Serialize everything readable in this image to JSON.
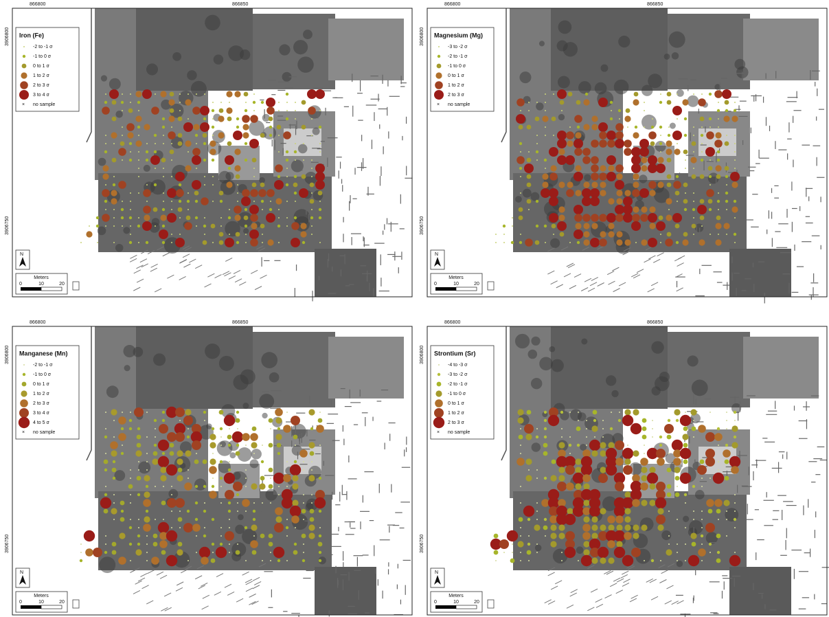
{
  "panels": [
    {
      "title": "Iron (Fe)",
      "legend": [
        {
          "label": "-2 to -1 σ",
          "color": "#c9d27a"
        },
        {
          "label": "-1 to 0 σ",
          "color": "#a7b52a"
        },
        {
          "label": "0 to 1 σ",
          "color": "#a39a2c"
        },
        {
          "label": "1 to 2 σ",
          "color": "#b0702c"
        },
        {
          "label": "2 to 3 σ",
          "color": "#a04222"
        },
        {
          "label": "3 to 4 σ",
          "color": "#9a1c18"
        }
      ],
      "no_sample": "no sample"
    },
    {
      "title": "Magnesium (Mg)",
      "legend": [
        {
          "label": "-3 to -2 σ",
          "color": "#c9d27a"
        },
        {
          "label": "-2 to -1 σ",
          "color": "#a7b52a"
        },
        {
          "label": "-1 to 0 σ",
          "color": "#a39a2c"
        },
        {
          "label": "0 to 1 σ",
          "color": "#b0702c"
        },
        {
          "label": "1 to 2 σ",
          "color": "#a04222"
        },
        {
          "label": "2 to 3 σ",
          "color": "#9a1c18"
        }
      ],
      "no_sample": "no sample"
    },
    {
      "title": "Manganese (Mn)",
      "legend": [
        {
          "label": "-2 to -1 σ",
          "color": "#d6dca0"
        },
        {
          "label": "-1 to 0 σ",
          "color": "#a7b52a"
        },
        {
          "label": "0 to 1 σ",
          "color": "#a3a82c"
        },
        {
          "label": "1 to 2 σ",
          "color": "#a89a2c"
        },
        {
          "label": "2 to 3 σ",
          "color": "#b0702c"
        },
        {
          "label": "3 to 4 σ",
          "color": "#a04222"
        },
        {
          "label": "4 to 5 σ",
          "color": "#9a1c18"
        }
      ],
      "no_sample": "no sample"
    },
    {
      "title": "Strontium (Sr)",
      "legend": [
        {
          "label": "-4 to -3 σ",
          "color": "#d6dca0"
        },
        {
          "label": "-3 to -2 σ",
          "color": "#b5c03a"
        },
        {
          "label": "-2 to -1 σ",
          "color": "#a7b52a"
        },
        {
          "label": "-1 to 0 σ",
          "color": "#a39a2c"
        },
        {
          "label": "0 to 1 σ",
          "color": "#b0702c"
        },
        {
          "label": "1 to 2 σ",
          "color": "#a04222"
        },
        {
          "label": "2 to 3 σ",
          "color": "#9a1c18"
        }
      ],
      "no_sample": "no sample"
    }
  ],
  "north": "N",
  "scale": {
    "unit": "Meters",
    "ticks": [
      "0",
      "10",
      "20"
    ]
  },
  "coords": {
    "x": [
      "866800",
      "866850"
    ],
    "y": [
      "3906800",
      "3906750"
    ]
  }
}
